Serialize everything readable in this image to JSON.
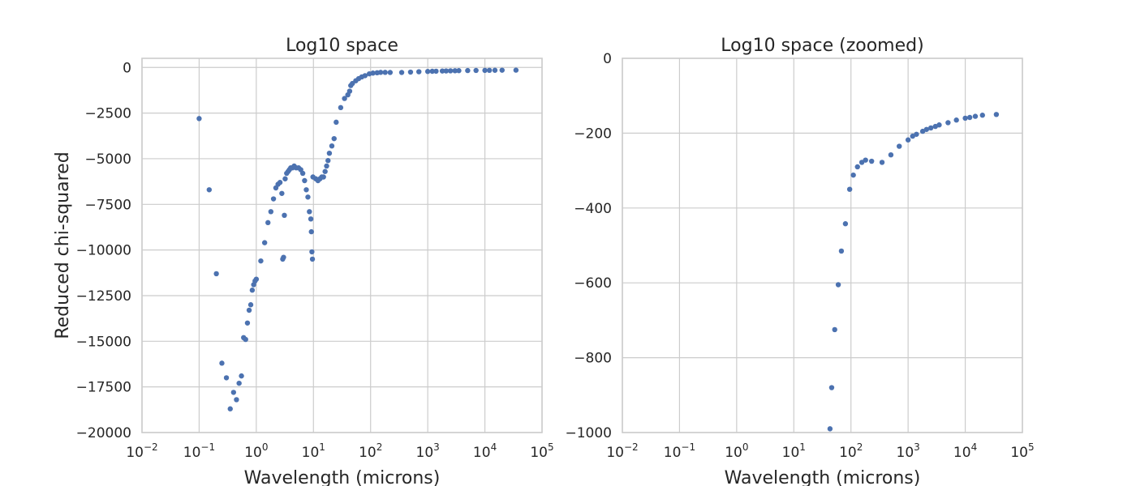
{
  "chart_data": [
    {
      "type": "scatter",
      "title": "Log10 space",
      "xlabel": "Wavelength (microns)",
      "ylabel": "Reduced chi-squared",
      "x_scale": "log",
      "xlim": [
        0.01,
        100000
      ],
      "ylim": [
        -20000,
        500
      ],
      "x_ticks": [
        {
          "base": "10",
          "exp": "−2",
          "value": 0.01
        },
        {
          "base": "10",
          "exp": "−1",
          "value": 0.1
        },
        {
          "base": "10",
          "exp": "0",
          "value": 1
        },
        {
          "base": "10",
          "exp": "1",
          "value": 10
        },
        {
          "base": "10",
          "exp": "2",
          "value": 100
        },
        {
          "base": "10",
          "exp": "3",
          "value": 1000
        },
        {
          "base": "10",
          "exp": "4",
          "value": 10000
        },
        {
          "base": "10",
          "exp": "5",
          "value": 100000
        }
      ],
      "y_ticks": [
        {
          "label": "0",
          "value": 0
        },
        {
          "label": "−2500",
          "value": -2500
        },
        {
          "label": "−5000",
          "value": -5000
        },
        {
          "label": "−7500",
          "value": -7500
        },
        {
          "label": "−10000",
          "value": -10000
        },
        {
          "label": "−12500",
          "value": -12500
        },
        {
          "label": "−15000",
          "value": -15000
        },
        {
          "label": "−17500",
          "value": -17500
        },
        {
          "label": "−20000",
          "value": -20000
        }
      ],
      "grid": true,
      "marker_color": "#4c72b0",
      "points": [
        [
          0.1,
          -2800
        ],
        [
          0.15,
          -6700
        ],
        [
          0.2,
          -11300
        ],
        [
          0.25,
          -16200
        ],
        [
          0.3,
          -17000
        ],
        [
          0.35,
          -18700
        ],
        [
          0.4,
          -17800
        ],
        [
          0.45,
          -18200
        ],
        [
          0.5,
          -17300
        ],
        [
          0.55,
          -16900
        ],
        [
          0.6,
          -14800
        ],
        [
          0.65,
          -14900
        ],
        [
          0.7,
          -14000
        ],
        [
          0.75,
          -13300
        ],
        [
          0.8,
          -13000
        ],
        [
          0.85,
          -12200
        ],
        [
          0.9,
          -11900
        ],
        [
          0.95,
          -11700
        ],
        [
          1.0,
          -11600
        ],
        [
          1.2,
          -10600
        ],
        [
          1.4,
          -9600
        ],
        [
          1.6,
          -8500
        ],
        [
          1.8,
          -7900
        ],
        [
          2.0,
          -7200
        ],
        [
          2.2,
          -6600
        ],
        [
          2.4,
          -6400
        ],
        [
          2.6,
          -6300
        ],
        [
          2.8,
          -6900
        ],
        [
          2.9,
          -10500
        ],
        [
          3.0,
          -10400
        ],
        [
          3.1,
          -8100
        ],
        [
          3.2,
          -6100
        ],
        [
          3.4,
          -5800
        ],
        [
          3.6,
          -5700
        ],
        [
          3.8,
          -5600
        ],
        [
          4.0,
          -5500
        ],
        [
          4.3,
          -5500
        ],
        [
          4.6,
          -5400
        ],
        [
          5.0,
          -5500
        ],
        [
          5.5,
          -5500
        ],
        [
          6.0,
          -5600
        ],
        [
          6.5,
          -5800
        ],
        [
          7.0,
          -6200
        ],
        [
          7.5,
          -6700
        ],
        [
          8.0,
          -7100
        ],
        [
          8.5,
          -7900
        ],
        [
          9.0,
          -8300
        ],
        [
          9.2,
          -9000
        ],
        [
          9.4,
          -10100
        ],
        [
          9.6,
          -10500
        ],
        [
          9.8,
          -6000
        ],
        [
          11,
          -6100
        ],
        [
          12,
          -6200
        ],
        [
          13,
          -6100
        ],
        [
          14,
          -6000
        ],
        [
          15,
          -6000
        ],
        [
          16,
          -5700
        ],
        [
          17,
          -5400
        ],
        [
          18,
          -5100
        ],
        [
          19,
          -4700
        ],
        [
          21,
          -4300
        ],
        [
          23,
          -3900
        ],
        [
          25,
          -3000
        ],
        [
          30,
          -2200
        ],
        [
          35,
          -1700
        ],
        [
          40,
          -1500
        ],
        [
          43,
          -1300
        ],
        [
          45,
          -990
        ],
        [
          48,
          -880
        ],
        [
          55,
          -730
        ],
        [
          62,
          -610
        ],
        [
          70,
          -520
        ],
        [
          80,
          -450
        ],
        [
          95,
          -350
        ],
        [
          110,
          -310
        ],
        [
          130,
          -290
        ],
        [
          150,
          -270
        ],
        [
          180,
          -270
        ],
        [
          220,
          -275
        ],
        [
          350,
          -275
        ],
        [
          500,
          -255
        ],
        [
          700,
          -235
        ],
        [
          1000,
          -220
        ],
        [
          1200,
          -210
        ],
        [
          1400,
          -205
        ],
        [
          1800,
          -195
        ],
        [
          2100,
          -190
        ],
        [
          2500,
          -185
        ],
        [
          3000,
          -180
        ],
        [
          3500,
          -175
        ],
        [
          5000,
          -170
        ],
        [
          7000,
          -165
        ],
        [
          10000,
          -160
        ],
        [
          12000,
          -157
        ],
        [
          15000,
          -155
        ],
        [
          20000,
          -150
        ],
        [
          35000,
          -148
        ]
      ]
    },
    {
      "type": "scatter",
      "title": "Log10 space (zoomed)",
      "xlabel": "Wavelength (microns)",
      "ylabel": "",
      "x_scale": "log",
      "xlim": [
        0.01,
        100000
      ],
      "ylim": [
        -1000,
        0
      ],
      "x_ticks": [
        {
          "base": "10",
          "exp": "−2",
          "value": 0.01
        },
        {
          "base": "10",
          "exp": "−1",
          "value": 0.1
        },
        {
          "base": "10",
          "exp": "0",
          "value": 1
        },
        {
          "base": "10",
          "exp": "1",
          "value": 10
        },
        {
          "base": "10",
          "exp": "2",
          "value": 100
        },
        {
          "base": "10",
          "exp": "3",
          "value": 1000
        },
        {
          "base": "10",
          "exp": "4",
          "value": 10000
        },
        {
          "base": "10",
          "exp": "5",
          "value": 100000
        }
      ],
      "y_ticks": [
        {
          "label": "0",
          "value": 0
        },
        {
          "label": "−200",
          "value": -200
        },
        {
          "label": "−400",
          "value": -400
        },
        {
          "label": "−600",
          "value": -600
        },
        {
          "label": "−800",
          "value": -800
        },
        {
          "label": "−1000",
          "value": -1000
        }
      ],
      "grid": true,
      "marker_color": "#4c72b0",
      "points": [
        [
          43,
          -990
        ],
        [
          46,
          -880
        ],
        [
          52,
          -725
        ],
        [
          60,
          -605
        ],
        [
          68,
          -515
        ],
        [
          80,
          -442
        ],
        [
          95,
          -350
        ],
        [
          110,
          -312
        ],
        [
          130,
          -290
        ],
        [
          155,
          -278
        ],
        [
          180,
          -272
        ],
        [
          230,
          -275
        ],
        [
          350,
          -278
        ],
        [
          500,
          -258
        ],
        [
          700,
          -235
        ],
        [
          1000,
          -218
        ],
        [
          1200,
          -208
        ],
        [
          1400,
          -203
        ],
        [
          1800,
          -195
        ],
        [
          2100,
          -190
        ],
        [
          2500,
          -186
        ],
        [
          3000,
          -182
        ],
        [
          3500,
          -178
        ],
        [
          5000,
          -172
        ],
        [
          7000,
          -165
        ],
        [
          10000,
          -160
        ],
        [
          12000,
          -158
        ],
        [
          15000,
          -155
        ],
        [
          20000,
          -152
        ],
        [
          35000,
          -150
        ]
      ]
    }
  ]
}
